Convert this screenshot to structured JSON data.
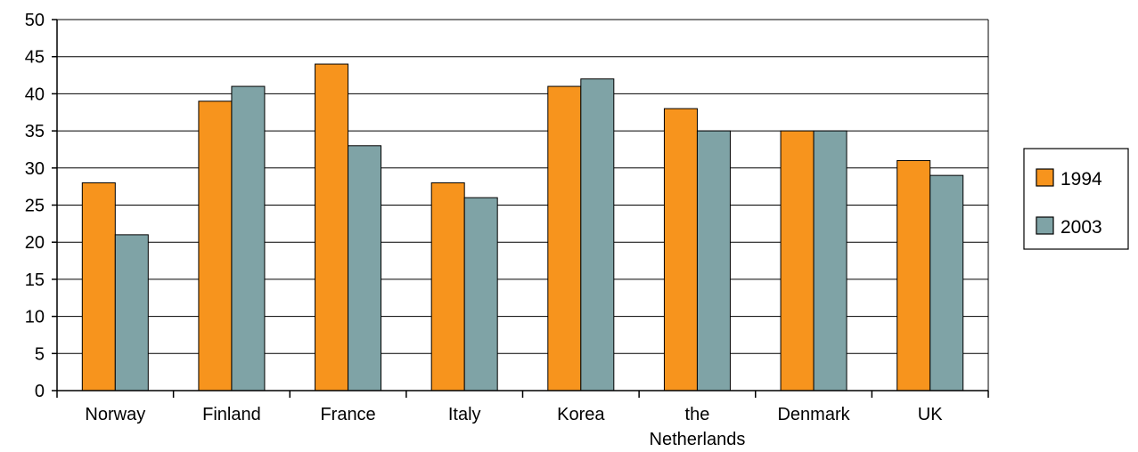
{
  "chart_data": {
    "type": "bar",
    "categories": [
      [
        "Norway"
      ],
      [
        "Finland"
      ],
      [
        "France"
      ],
      [
        "Italy"
      ],
      [
        "Korea"
      ],
      [
        "the",
        "Netherlands"
      ],
      [
        "Denmark"
      ],
      [
        "UK"
      ]
    ],
    "series": [
      {
        "name": "1994",
        "color": "#F7941D",
        "values": [
          28,
          39,
          44,
          28,
          41,
          38,
          35,
          31
        ]
      },
      {
        "name": "2003",
        "color": "#7FA3A6",
        "values": [
          21,
          41,
          33,
          26,
          42,
          35,
          35,
          29
        ]
      }
    ],
    "ylim": [
      0,
      50
    ],
    "yticks": [
      "0",
      "5",
      "10",
      "15",
      "20",
      "25",
      "30",
      "35",
      "40",
      "45",
      "50"
    ],
    "grid": true,
    "legend": "right",
    "title": "",
    "xlabel": "",
    "ylabel": ""
  }
}
